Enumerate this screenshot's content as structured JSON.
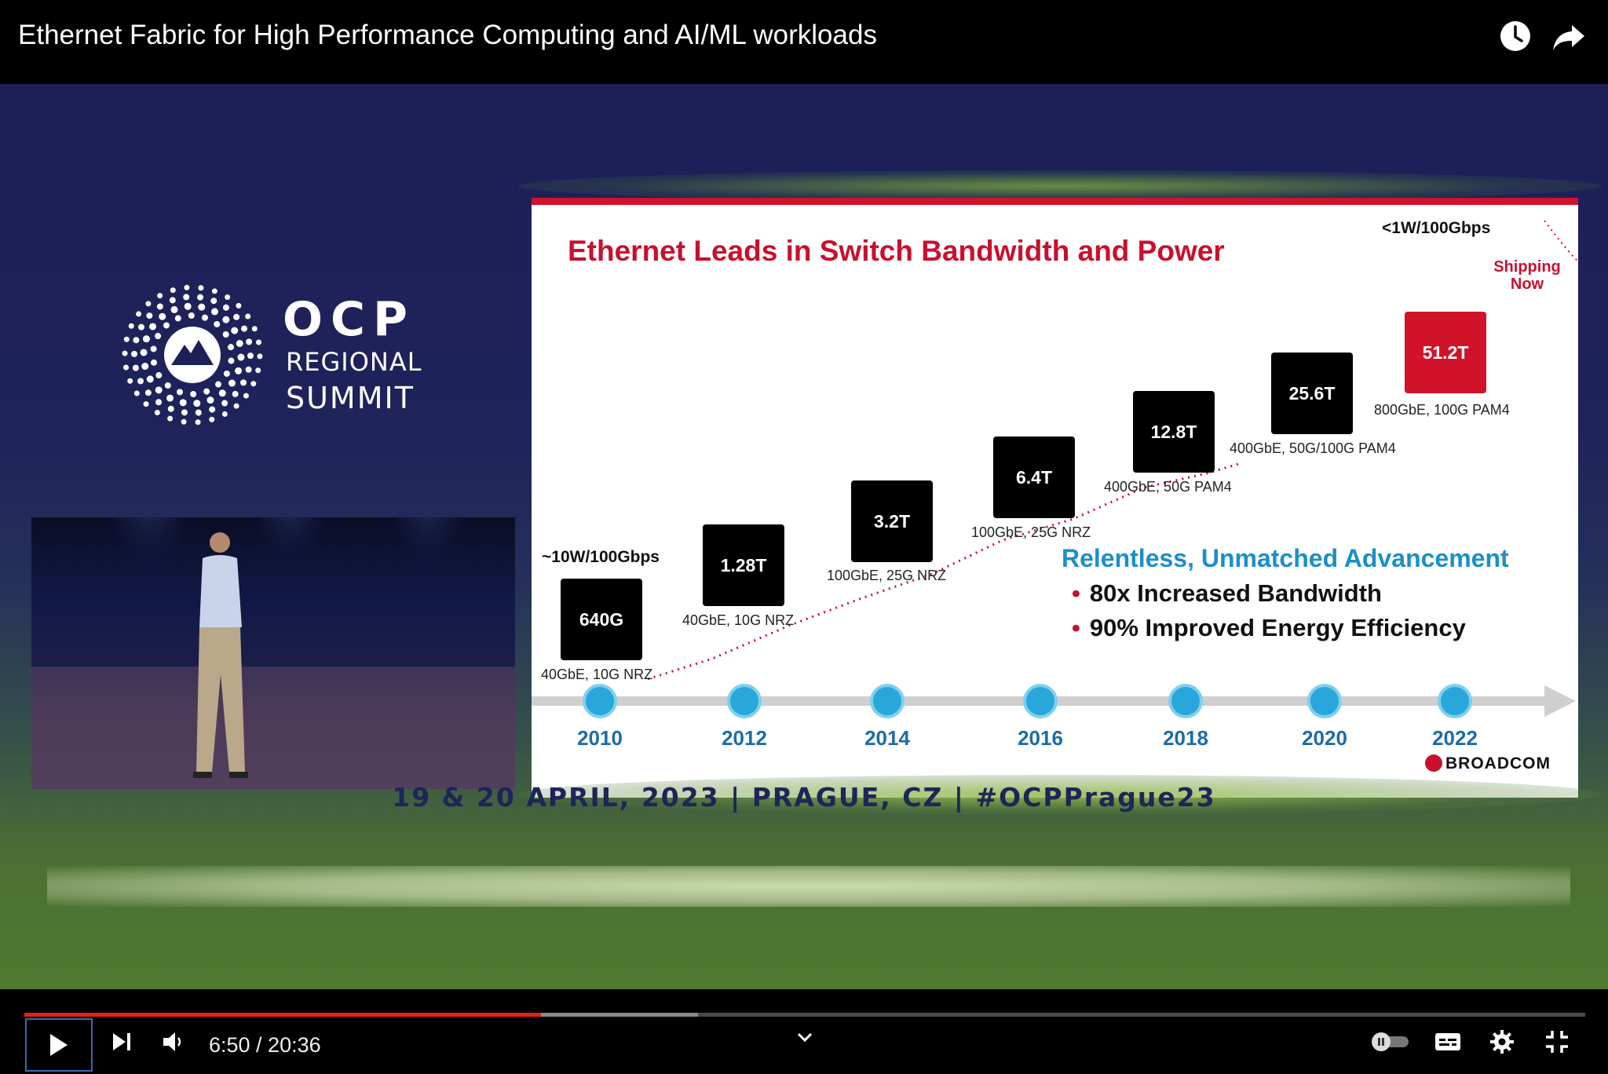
{
  "header": {
    "title": "Ethernet Fabric for High Performance Computing and AI/ML workloads"
  },
  "branding": {
    "ocp": "OCP",
    "regional": "REGIONAL",
    "summit": "SUMMIT"
  },
  "slide": {
    "title": "Ethernet Leads in Switch Bandwidth and Power",
    "power_start": "~10W/100Gbps",
    "power_end": "<1W/100Gbps",
    "shipping": "Shipping Now",
    "chips": [
      {
        "label": "640G",
        "sub": "40GbE, 10G NRZ"
      },
      {
        "label": "1.28T",
        "sub": "40GbE, 10G NRZ"
      },
      {
        "label": "3.2T",
        "sub": "100GbE, 25G NRZ"
      },
      {
        "label": "6.4T",
        "sub": "100GbE, 25G NRZ"
      },
      {
        "label": "12.8T",
        "sub": "400GbE, 50G PAM4"
      },
      {
        "label": "25.6T",
        "sub": "400GbE, 50G/100G PAM4"
      },
      {
        "label": "51.2T",
        "sub": "800GbE, 100G PAM4"
      }
    ],
    "years": [
      "2010",
      "2012",
      "2014",
      "2016",
      "2018",
      "2020",
      "2022"
    ],
    "advancement_title": "Relentless, Unmatched Advancement",
    "advancement_items": [
      "80x Increased Bandwidth",
      "90% Improved Energy Efficiency"
    ],
    "vendor": "BROADCOM"
  },
  "banner": {
    "text": "19 & 20 APRIL, 2023  |  PRAGUE, CZ  |  #OCPPrague23"
  },
  "player": {
    "current_time": "6:50",
    "duration": "20:36",
    "time_display": "6:50 / 20:36",
    "progress_fraction": 0.331
  },
  "colors": {
    "accent_red": "#d1132a",
    "year_blue": "#1b6ca8",
    "adv_blue": "#1b8fc7",
    "progress_red": "#e62117"
  }
}
